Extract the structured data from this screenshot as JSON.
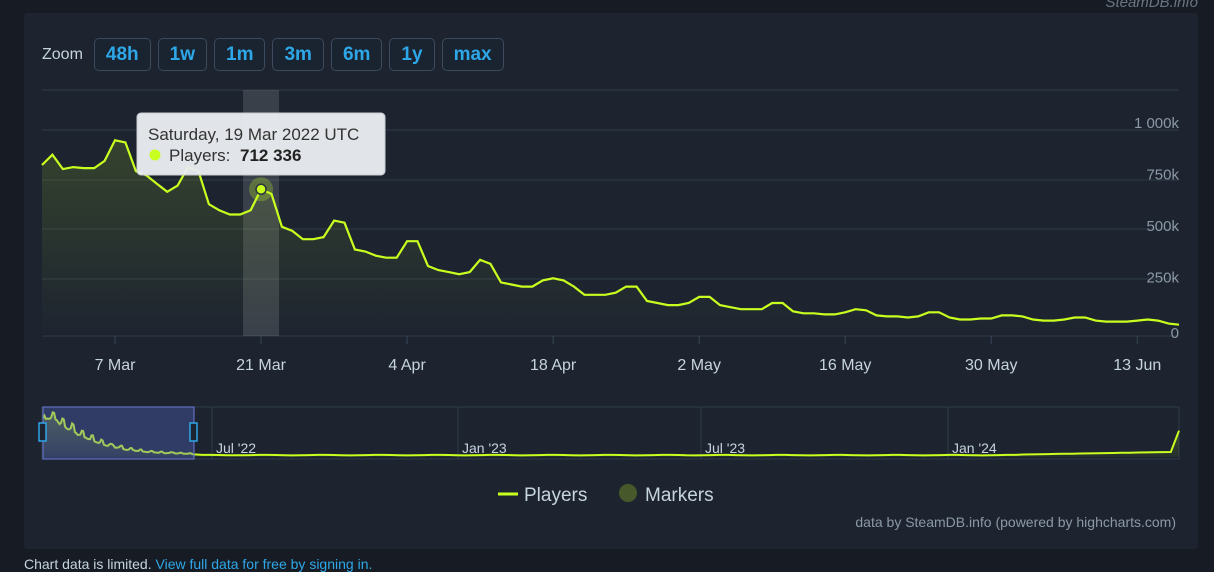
{
  "source_watermark": "SteamDB.info",
  "zoom": {
    "label": "Zoom",
    "buttons": [
      "48h",
      "1w",
      "1m",
      "3m",
      "6m",
      "1y",
      "max"
    ]
  },
  "chart_data": {
    "type": "line",
    "x_ticks": [
      "7 Mar",
      "21 Mar",
      "4 Apr",
      "18 Apr",
      "2 May",
      "16 May",
      "30 May",
      "13 Jun"
    ],
    "y_ticks": [
      "0",
      "250k",
      "500k",
      "750k",
      "1 000k"
    ],
    "ylim": [
      0,
      1000000
    ],
    "series": [
      {
        "name": "Players",
        "color": "#c9ff1f",
        "start_date": "2022-02-28",
        "values": [
          830000,
          880000,
          810000,
          820000,
          815000,
          815000,
          850000,
          950000,
          940000,
          800000,
          780000,
          740000,
          700000,
          730000,
          820000,
          800000,
          640000,
          610000,
          590000,
          590000,
          610000,
          712336,
          690000,
          530000,
          510000,
          470000,
          470000,
          480000,
          560000,
          550000,
          420000,
          410000,
          390000,
          380000,
          380000,
          460000,
          460000,
          340000,
          320000,
          310000,
          300000,
          310000,
          370000,
          350000,
          260000,
          250000,
          240000,
          240000,
          270000,
          280000,
          270000,
          240000,
          200000,
          200000,
          200000,
          210000,
          240000,
          240000,
          170000,
          160000,
          150000,
          150000,
          160000,
          190000,
          190000,
          150000,
          140000,
          130000,
          130000,
          130000,
          160000,
          160000,
          120000,
          110000,
          110000,
          105000,
          105000,
          115000,
          130000,
          125000,
          100000,
          95000,
          95000,
          90000,
          95000,
          115000,
          115000,
          90000,
          80000,
          80000,
          85000,
          85000,
          100000,
          100000,
          95000,
          80000,
          75000,
          75000,
          80000,
          90000,
          90000,
          75000,
          70000,
          70000,
          70000,
          75000,
          80000,
          75000,
          60000,
          55000
        ]
      }
    ],
    "legend": [
      "Players",
      "Markers"
    ],
    "legend_colors": [
      "#c9ff1f",
      "#47592b"
    ],
    "tooltip": {
      "date": "Saturday, 19 Mar 2022 UTC",
      "label": "Players:",
      "value": "712 336"
    },
    "highlight_index": 21,
    "navigator_labels": [
      "Jul '22",
      "Jan '23",
      "Jul '23",
      "Jan '24"
    ]
  },
  "footer": "data by SteamDB.info (powered by highcharts.com)",
  "bottom_note": {
    "text": "Chart data is limited.",
    "link": "View full data for free by signing in."
  }
}
